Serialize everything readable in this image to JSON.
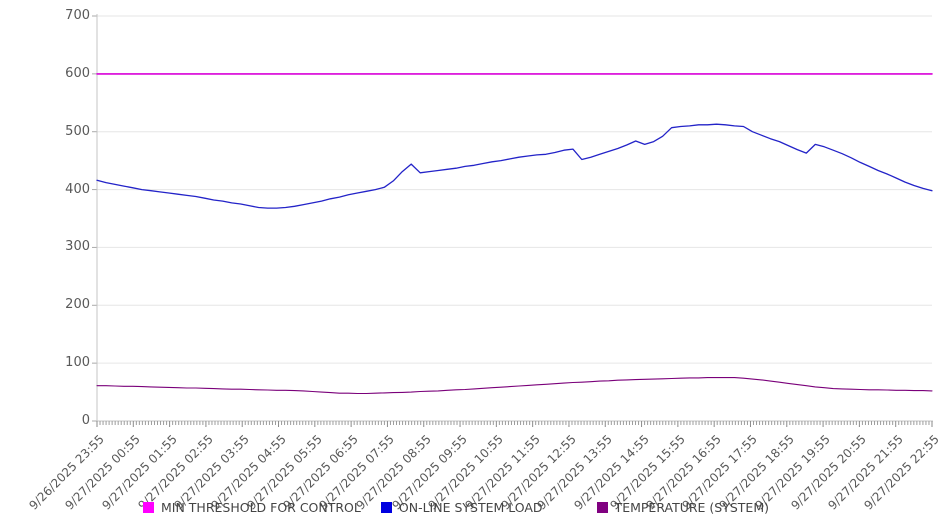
{
  "legend": {
    "items": [
      {
        "label": "MIN THRESHOLD FOR CONTROL",
        "swatch_color": "#ff00ff"
      },
      {
        "label": "ON-LINE SYSTEM LOAD",
        "swatch_color": "#0000e0"
      },
      {
        "label": "TEMPERATURE (SYSTEM)",
        "swatch_color": "#800080"
      }
    ]
  },
  "chart_data": {
    "type": "line",
    "title": "",
    "xlabel": "",
    "ylabel": "",
    "ylim": [
      0,
      700
    ],
    "y_ticks": [
      0,
      100,
      200,
      300,
      400,
      500,
      600,
      700
    ],
    "grid": "horizontal",
    "legend_position": "bottom",
    "x_tick_labels": [
      "9/26/2025 23:55",
      "9/27/2025 00:55",
      "9/27/2025 01:55",
      "9/27/2025 02:55",
      "9/27/2025 03:55",
      "9/27/2025 04:55",
      "9/27/2025 05:55",
      "9/27/2025 06:55",
      "9/27/2025 07:55",
      "9/27/2025 08:55",
      "9/27/2025 09:55",
      "9/27/2025 10:55",
      "9/27/2025 11:55",
      "9/27/2025 12:55",
      "9/27/2025 13:55",
      "9/27/2025 14:55",
      "9/27/2025 15:55",
      "9/27/2025 16:55",
      "9/27/2025 17:55",
      "9/27/2025 18:55",
      "9/27/2025 19:55",
      "9/27/2025 20:55",
      "9/27/2025 21:55",
      "9/27/2025 22:55"
    ],
    "x_span_minutes": 1380,
    "minor_tick_minutes": 5,
    "series": [
      {
        "name": "MIN THRESHOLD FOR CONTROL",
        "color": "#d900d9",
        "width": 1.6,
        "values": [
          600,
          600
        ]
      },
      {
        "name": "ON-LINE SYSTEM LOAD",
        "color": "#2323c8",
        "width": 1.3,
        "values": [
          416,
          412,
          409,
          406,
          403,
          400,
          398,
          396,
          394,
          392,
          390,
          388,
          385,
          382,
          380,
          377,
          375,
          372,
          369,
          368,
          368,
          369,
          371,
          374,
          377,
          380,
          384,
          387,
          391,
          394,
          397,
          400,
          404,
          415,
          431,
          444,
          429,
          431,
          433,
          435,
          437,
          440,
          442,
          445,
          448,
          450,
          453,
          456,
          458,
          460,
          461,
          464,
          468,
          470,
          452,
          456,
          461,
          466,
          471,
          477,
          484,
          478,
          483,
          492,
          507,
          509,
          510,
          512,
          512,
          513,
          512,
          510,
          509,
          500,
          494,
          488,
          483,
          476,
          469,
          463,
          478,
          474,
          468,
          462,
          455,
          447,
          440,
          433,
          427,
          420,
          413,
          407,
          402,
          398
        ]
      },
      {
        "name": "TEMPERATURE (SYSTEM)",
        "color": "#7a007a",
        "width": 1.1,
        "values": [
          61,
          61,
          60.5,
          60,
          60,
          59.5,
          59,
          58.5,
          58,
          57.5,
          57,
          57,
          56.5,
          56,
          55.5,
          55,
          55,
          54.5,
          54,
          53.5,
          53,
          53,
          52.5,
          52,
          51,
          50,
          49,
          48,
          48,
          47.5,
          47.5,
          48,
          48.5,
          49,
          49.5,
          50,
          51,
          51.5,
          52,
          53,
          54,
          54.5,
          55.5,
          56.5,
          57.5,
          58.5,
          59.5,
          60.5,
          61.5,
          62.5,
          63.5,
          64.5,
          65.5,
          66.5,
          67,
          68,
          69,
          69.5,
          70.5,
          71,
          71.5,
          72,
          72.5,
          73,
          73.5,
          74,
          74.5,
          74.5,
          75,
          75,
          75,
          75,
          74,
          72.5,
          71,
          69,
          67,
          65,
          63,
          61,
          59,
          57.5,
          56,
          55.5,
          55,
          54.5,
          54,
          54,
          53.5,
          53,
          53,
          52.5,
          52.5,
          52
        ]
      }
    ]
  }
}
